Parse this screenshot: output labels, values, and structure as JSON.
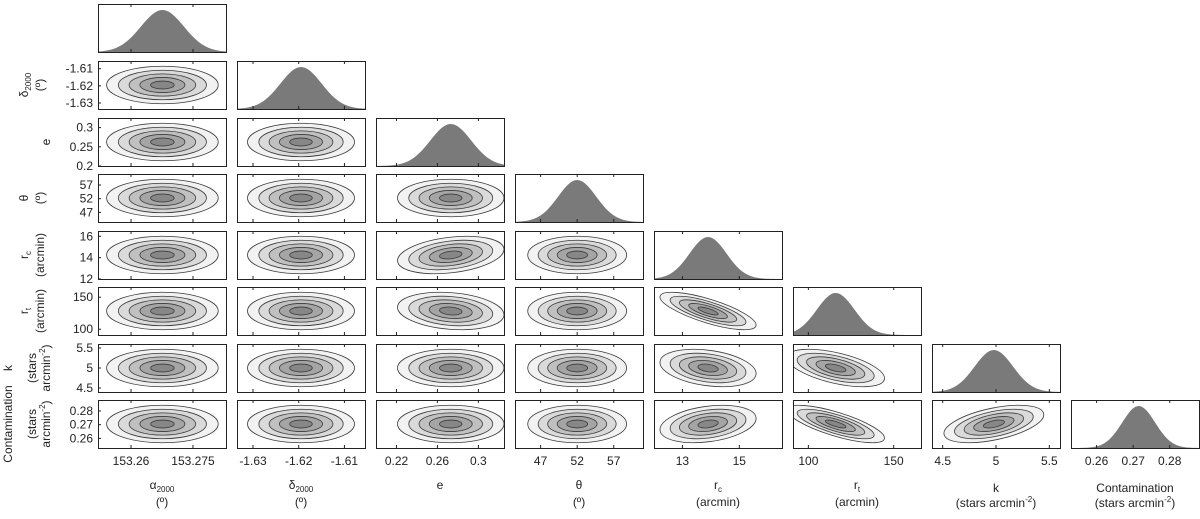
{
  "chart_data": {
    "type": "corner",
    "parameters": [
      {
        "key": "ra",
        "label": "α",
        "label_sub": "2000",
        "unit": "(º)",
        "range": [
          153.252,
          153.283
        ],
        "ticks": [
          153.26,
          153.275
        ],
        "tick_labels": [
          "153.26",
          "153.275"
        ],
        "peak": 153.2676,
        "sigma": 0.0052
      },
      {
        "key": "dec",
        "label": "δ",
        "label_sub": "2000",
        "unit": "(º)",
        "range": [
          -1.6335,
          -1.6055
        ],
        "ticks": [
          -1.63,
          -1.62,
          -1.61
        ],
        "tick_labels": [
          "-1.63",
          "-1.62",
          "-1.61"
        ],
        "peak": -1.6195,
        "sigma": 0.0045
      },
      {
        "key": "e",
        "label": "e",
        "unit": "",
        "range": [
          0.2,
          0.325
        ],
        "ticks": [
          0.22,
          0.26,
          0.3
        ],
        "tick_labels": [
          "0.22",
          "0.26",
          "0.3"
        ],
        "peak": 0.273,
        "sigma": 0.02
      },
      {
        "key": "theta",
        "label": "θ",
        "unit": "(º)",
        "range": [
          43.5,
          61.0
        ],
        "ticks": [
          47,
          52,
          57
        ],
        "tick_labels": [
          "47",
          "52",
          "57"
        ],
        "peak": 52.0,
        "sigma": 2.6
      },
      {
        "key": "rc",
        "label": "r",
        "label_sub": "c",
        "unit": "(arcmin)",
        "range": [
          12.0,
          16.5
        ],
        "ticks": [
          13,
          15
        ],
        "tick_labels": [
          "13",
          "15"
        ],
        "peak": 13.9,
        "sigma": 0.65
      },
      {
        "key": "rt",
        "label": "r",
        "label_sub": "t",
        "unit": "(arcmin)",
        "range": [
          91.0,
          166.0
        ],
        "ticks": [
          100,
          150
        ],
        "tick_labels": [
          "100",
          "150"
        ],
        "peak": 116.0,
        "sigma": 11.0
      },
      {
        "key": "k",
        "label": "k",
        "unit_pre": "(stars arcmin",
        "unit_sup": "-2",
        "unit_post": ")",
        "range": [
          4.4,
          5.6
        ],
        "ticks": [
          4.5,
          5,
          5.5
        ],
        "tick_labels": [
          "4.5",
          "5",
          "5.5"
        ],
        "peak": 4.98,
        "sigma": 0.18
      },
      {
        "key": "cont",
        "label": "Contamination",
        "unit_pre": "(stars arcmin",
        "unit_sup": "-2",
        "unit_post": ")",
        "range": [
          0.253,
          0.288
        ],
        "ticks": [
          0.26,
          0.27,
          0.28
        ],
        "tick_labels": [
          "0.26",
          "0.27",
          "0.28"
        ],
        "peak": 0.2715,
        "sigma": 0.0045
      }
    ],
    "y_axis_panels": [
      {
        "row": 1,
        "label": "δ",
        "label_sub": "2000",
        "unit": "(º)",
        "ticks": [
          -1.61,
          -1.62,
          -1.63
        ],
        "tick_labels": [
          "-1.61",
          "-1.62",
          "-1.63"
        ]
      },
      {
        "row": 2,
        "label": "e",
        "unit": "",
        "ticks": [
          0.3,
          0.25,
          0.2
        ],
        "tick_labels": [
          "0.3",
          "0.25",
          "0.2"
        ]
      },
      {
        "row": 3,
        "label": "θ",
        "unit": "(º)",
        "ticks": [
          57,
          52,
          47
        ],
        "tick_labels": [
          "57",
          "52",
          "47"
        ]
      },
      {
        "row": 4,
        "label": "r",
        "label_sub": "c",
        "unit": "(arcmin)",
        "ticks": [
          16,
          14,
          12
        ],
        "tick_labels": [
          "16",
          "14",
          "12"
        ]
      },
      {
        "row": 5,
        "label": "r",
        "label_sub": "t",
        "unit": "(arcmin)",
        "ticks": [
          150,
          100
        ],
        "tick_labels": [
          "150",
          "100"
        ]
      },
      {
        "row": 6,
        "label": "k",
        "unit_lines": [
          "(stars",
          "arcmin"
        ],
        "unit_sup": "-2",
        "unit_post": ")",
        "ticks": [
          5.5,
          5,
          4.5
        ],
        "tick_labels": [
          "5.5",
          "5",
          "4.5"
        ]
      },
      {
        "row": 7,
        "label": "Contamination",
        "unit_lines": [
          "(stars",
          "arcmin"
        ],
        "unit_sup": "-2",
        "unit_post": ")",
        "ticks": [
          0.28,
          0.27,
          0.26
        ],
        "tick_labels": [
          "0.28",
          "0.27",
          "0.26"
        ]
      }
    ],
    "correlations": {
      "rc_rt": -0.75,
      "rt_k": -0.55,
      "rt_cont": -0.75,
      "k_cont": 0.5,
      "rc_k": -0.3,
      "rc_cont": 0.3,
      "e_rc": 0.3,
      "e_rt": -0.2
    },
    "contour_levels": 5,
    "colors": {
      "histogram": "#7a7a7a",
      "contour_fills": [
        "#f2f2f2",
        "#dadada",
        "#c0c0c0",
        "#a5a5a5",
        "#878787"
      ],
      "contour_line": "#3a3a3a",
      "frame": "#222222"
    }
  }
}
